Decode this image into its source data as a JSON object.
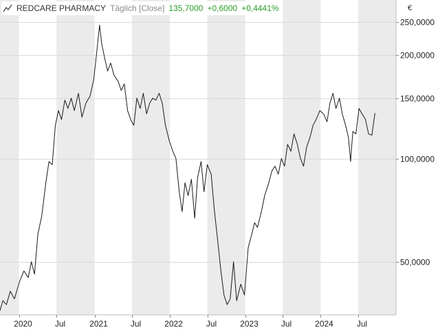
{
  "header": {
    "name": "REDCARE PHARMACY",
    "period": "Täglich [Close]",
    "last": "135,7000",
    "change": "+0,6000",
    "change_pct": "+0,4441%",
    "currency": "€"
  },
  "colors": {
    "band_a": "#ffffff",
    "band_b": "#ebebeb",
    "grid": "#d9d9d9",
    "line": "#1a1a1a",
    "positive": "#2a9d2a"
  },
  "chart_data": {
    "type": "line",
    "y_scale": "log",
    "ylim": [
      35,
      290
    ],
    "xlim": [
      "2019-10-01",
      "2024-12-31"
    ],
    "y_ticks": [
      {
        "value": 50,
        "label": "50,0000"
      },
      {
        "value": 100,
        "label": "100,0000"
      },
      {
        "value": 150,
        "label": "150,0000"
      },
      {
        "value": 200,
        "label": "200,0000"
      },
      {
        "value": 250,
        "label": "250,0000"
      }
    ],
    "x_ticks": [
      {
        "date": "2020-01-01",
        "label": "2020"
      },
      {
        "date": "2020-07-01",
        "label": "Jul"
      },
      {
        "date": "2021-01-01",
        "label": "2021"
      },
      {
        "date": "2021-07-01",
        "label": "Jul"
      },
      {
        "date": "2022-01-01",
        "label": "2022"
      },
      {
        "date": "2022-07-01",
        "label": "Jul"
      },
      {
        "date": "2023-01-01",
        "label": "2023"
      },
      {
        "date": "2023-07-01",
        "label": "Jul"
      },
      {
        "date": "2024-01-01",
        "label": "2024"
      },
      {
        "date": "2024-07-01",
        "label": "Jul"
      }
    ],
    "series": [
      {
        "points": [
          [
            "2019-10-01",
            36
          ],
          [
            "2019-10-15",
            38.5
          ],
          [
            "2019-11-01",
            37.5
          ],
          [
            "2019-11-20",
            41
          ],
          [
            "2019-12-10",
            39
          ],
          [
            "2020-01-05",
            44
          ],
          [
            "2020-01-25",
            47
          ],
          [
            "2020-02-15",
            45
          ],
          [
            "2020-03-01",
            50
          ],
          [
            "2020-03-16",
            46
          ],
          [
            "2020-04-01",
            60
          ],
          [
            "2020-04-20",
            68
          ],
          [
            "2020-05-10",
            85
          ],
          [
            "2020-05-25",
            98
          ],
          [
            "2020-06-10",
            96
          ],
          [
            "2020-06-25",
            125
          ],
          [
            "2020-07-10",
            138
          ],
          [
            "2020-07-25",
            130
          ],
          [
            "2020-08-10",
            148
          ],
          [
            "2020-08-25",
            140
          ],
          [
            "2020-09-10",
            150
          ],
          [
            "2020-09-25",
            138
          ],
          [
            "2020-10-15",
            155
          ],
          [
            "2020-11-01",
            132
          ],
          [
            "2020-11-20",
            145
          ],
          [
            "2020-12-10",
            152
          ],
          [
            "2020-12-28",
            170
          ],
          [
            "2021-01-10",
            200
          ],
          [
            "2021-01-25",
            245
          ],
          [
            "2021-02-05",
            215
          ],
          [
            "2021-02-20",
            195
          ],
          [
            "2021-03-05",
            180
          ],
          [
            "2021-03-20",
            190
          ],
          [
            "2021-04-05",
            175
          ],
          [
            "2021-04-25",
            168
          ],
          [
            "2021-05-10",
            158
          ],
          [
            "2021-05-25",
            165
          ],
          [
            "2021-06-10",
            138
          ],
          [
            "2021-06-25",
            130
          ],
          [
            "2021-07-10",
            125
          ],
          [
            "2021-07-25",
            150
          ],
          [
            "2021-08-10",
            140
          ],
          [
            "2021-08-25",
            155
          ],
          [
            "2021-09-10",
            135
          ],
          [
            "2021-09-25",
            145
          ],
          [
            "2021-10-10",
            150
          ],
          [
            "2021-10-25",
            148
          ],
          [
            "2021-11-10",
            155
          ],
          [
            "2021-11-25",
            145
          ],
          [
            "2021-12-10",
            125
          ],
          [
            "2021-12-30",
            112
          ],
          [
            "2022-01-15",
            105
          ],
          [
            "2022-01-30",
            100
          ],
          [
            "2022-02-15",
            80
          ],
          [
            "2022-03-01",
            70
          ],
          [
            "2022-03-15",
            85
          ],
          [
            "2022-03-30",
            78
          ],
          [
            "2022-04-15",
            87
          ],
          [
            "2022-05-01",
            67
          ],
          [
            "2022-05-15",
            88
          ],
          [
            "2022-06-01",
            98
          ],
          [
            "2022-06-15",
            80
          ],
          [
            "2022-07-01",
            96
          ],
          [
            "2022-07-20",
            90
          ],
          [
            "2022-08-05",
            70
          ],
          [
            "2022-08-20",
            58
          ],
          [
            "2022-09-05",
            47
          ],
          [
            "2022-09-20",
            40
          ],
          [
            "2022-10-05",
            37.5
          ],
          [
            "2022-10-20",
            39
          ],
          [
            "2022-11-05",
            50
          ],
          [
            "2022-11-20",
            38.5
          ],
          [
            "2022-12-10",
            43
          ],
          [
            "2022-12-28",
            40
          ],
          [
            "2023-01-15",
            55
          ],
          [
            "2023-02-01",
            60
          ],
          [
            "2023-02-15",
            65
          ],
          [
            "2023-03-01",
            63
          ],
          [
            "2023-03-20",
            70
          ],
          [
            "2023-04-05",
            78
          ],
          [
            "2023-04-25",
            85
          ],
          [
            "2023-05-10",
            92
          ],
          [
            "2023-05-25",
            95
          ],
          [
            "2023-06-10",
            90
          ],
          [
            "2023-06-25",
            100
          ],
          [
            "2023-07-10",
            95
          ],
          [
            "2023-07-25",
            110
          ],
          [
            "2023-08-10",
            105
          ],
          [
            "2023-08-25",
            118
          ],
          [
            "2023-09-10",
            110
          ],
          [
            "2023-09-25",
            100
          ],
          [
            "2023-10-10",
            95
          ],
          [
            "2023-10-25",
            108
          ],
          [
            "2023-11-10",
            115
          ],
          [
            "2023-11-25",
            125
          ],
          [
            "2023-12-10",
            130
          ],
          [
            "2023-12-28",
            138
          ],
          [
            "2024-01-15",
            135
          ],
          [
            "2024-02-01",
            128
          ],
          [
            "2024-02-15",
            145
          ],
          [
            "2024-03-01",
            155
          ],
          [
            "2024-03-15",
            140
          ],
          [
            "2024-04-01",
            150
          ],
          [
            "2024-04-15",
            135
          ],
          [
            "2024-05-01",
            125
          ],
          [
            "2024-05-15",
            115
          ],
          [
            "2024-05-25",
            98
          ],
          [
            "2024-06-05",
            120
          ],
          [
            "2024-06-20",
            118
          ],
          [
            "2024-07-05",
            140
          ],
          [
            "2024-07-20",
            135
          ],
          [
            "2024-08-05",
            130
          ],
          [
            "2024-08-20",
            118
          ],
          [
            "2024-09-05",
            117
          ],
          [
            "2024-09-20",
            135.7
          ]
        ]
      }
    ]
  }
}
